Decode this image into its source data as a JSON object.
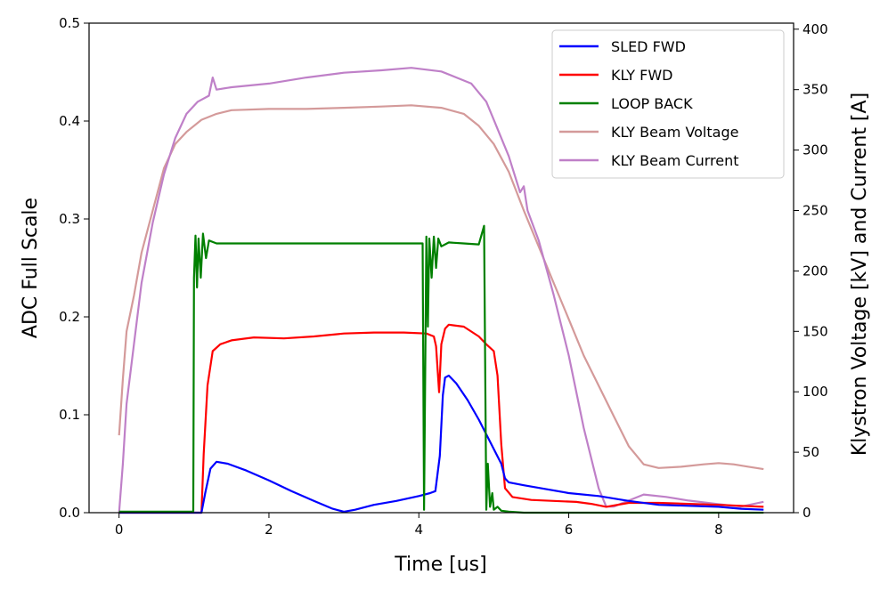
{
  "chart_data": {
    "type": "line",
    "xlabel": "Time [us]",
    "ylabel_left": "ADC Full Scale",
    "ylabel_right": "Klystron Voltage [kV] and Current [A]",
    "xlim": [
      -0.4,
      9.0
    ],
    "ylim_left": [
      0,
      0.5
    ],
    "ylim_right": [
      0,
      405
    ],
    "x_ticks": [
      0,
      2,
      4,
      6,
      8
    ],
    "x_tick_labels": [
      "0",
      "2",
      "4",
      "6",
      "8"
    ],
    "y_left_ticks": [
      0,
      0.1,
      0.2,
      0.3,
      0.4,
      0.5
    ],
    "y_left_tick_labels": [
      "0.0",
      "0.1",
      "0.2",
      "0.3",
      "0.4",
      "0.5"
    ],
    "y_right_ticks": [
      0,
      50,
      100,
      150,
      200,
      250,
      300,
      350,
      400
    ],
    "y_right_tick_labels": [
      "0",
      "50",
      "100",
      "150",
      "200",
      "250",
      "300",
      "350",
      "400"
    ],
    "legend_position": "top-right",
    "series": [
      {
        "name": "SLED FWD",
        "axis": "left",
        "color": "#0000ff",
        "x": [
          0,
          1.1,
          1.15,
          1.22,
          1.3,
          1.45,
          1.7,
          2.0,
          2.3,
          2.6,
          2.85,
          3.0,
          3.15,
          3.4,
          3.7,
          4.0,
          4.15,
          4.22,
          4.28,
          4.32,
          4.35,
          4.4,
          4.5,
          4.65,
          4.8,
          4.9,
          5.0,
          5.1,
          5.15,
          5.2,
          5.4,
          5.7,
          6.0,
          6.4,
          6.8,
          7.2,
          7.6,
          8.0,
          8.3,
          8.6
        ],
        "y": [
          0,
          0,
          0.02,
          0.045,
          0.052,
          0.05,
          0.043,
          0.033,
          0.022,
          0.012,
          0.004,
          0.001,
          0.003,
          0.008,
          0.012,
          0.017,
          0.02,
          0.022,
          0.058,
          0.12,
          0.138,
          0.14,
          0.132,
          0.115,
          0.095,
          0.08,
          0.065,
          0.05,
          0.035,
          0.031,
          0.028,
          0.024,
          0.02,
          0.017,
          0.012,
          0.008,
          0.007,
          0.006,
          0.004,
          0.003
        ]
      },
      {
        "name": "KLY FWD",
        "axis": "left",
        "color": "#ff0000",
        "x": [
          0,
          1.1,
          1.13,
          1.18,
          1.25,
          1.35,
          1.5,
          1.8,
          2.2,
          2.6,
          3.0,
          3.4,
          3.8,
          4.1,
          4.2,
          4.23,
          4.27,
          4.3,
          4.35,
          4.4,
          4.6,
          4.8,
          4.9,
          5.0,
          5.05,
          5.1,
          5.15,
          5.25,
          5.5,
          5.8,
          6.1,
          6.3,
          6.5,
          6.8,
          7.2,
          7.6,
          8.0,
          8.3,
          8.6
        ],
        "y": [
          0,
          0,
          0.06,
          0.13,
          0.165,
          0.172,
          0.176,
          0.179,
          0.178,
          0.18,
          0.183,
          0.184,
          0.184,
          0.183,
          0.18,
          0.17,
          0.123,
          0.172,
          0.188,
          0.192,
          0.19,
          0.18,
          0.172,
          0.165,
          0.14,
          0.07,
          0.025,
          0.016,
          0.013,
          0.012,
          0.011,
          0.009,
          0.006,
          0.01,
          0.01,
          0.009,
          0.008,
          0.007,
          0.006
        ]
      },
      {
        "name": "LOOP BACK",
        "axis": "left",
        "color": "#008000",
        "x": [
          0,
          0.95,
          0.99,
          1.0,
          1.02,
          1.04,
          1.06,
          1.09,
          1.12,
          1.16,
          1.2,
          1.3,
          1.6,
          2.0,
          2.4,
          2.8,
          3.2,
          3.6,
          4.0,
          4.05,
          4.07,
          4.1,
          4.12,
          4.14,
          4.17,
          4.2,
          4.23,
          4.26,
          4.3,
          4.4,
          4.6,
          4.8,
          4.87,
          4.9,
          4.92,
          4.95,
          4.98,
          5.0,
          5.05,
          5.1,
          5.2,
          5.4,
          5.8,
          6.2,
          6.6,
          7.0,
          7.5,
          8.0,
          8.6
        ],
        "y": [
          0.001,
          0.001,
          0.001,
          0.24,
          0.283,
          0.23,
          0.28,
          0.24,
          0.285,
          0.26,
          0.278,
          0.275,
          0.275,
          0.275,
          0.275,
          0.275,
          0.275,
          0.275,
          0.275,
          0.275,
          0.003,
          0.282,
          0.19,
          0.28,
          0.24,
          0.282,
          0.25,
          0.28,
          0.272,
          0.276,
          0.275,
          0.274,
          0.293,
          0.003,
          0.05,
          0.006,
          0.02,
          0.003,
          0.006,
          0.002,
          0.001,
          0,
          0,
          0,
          0,
          0,
          0,
          0,
          0
        ]
      },
      {
        "name": "KLY Beam Voltage",
        "axis": "right",
        "color": "#d49a9a",
        "x": [
          0,
          0.05,
          0.1,
          0.2,
          0.3,
          0.45,
          0.6,
          0.75,
          0.9,
          1.1,
          1.3,
          1.5,
          2.0,
          2.5,
          3.0,
          3.5,
          3.9,
          4.3,
          4.6,
          4.8,
          5.0,
          5.2,
          5.4,
          5.6,
          5.8,
          6.0,
          6.2,
          6.4,
          6.6,
          6.8,
          7.0,
          7.2,
          7.5,
          7.8,
          8.0,
          8.2,
          8.4,
          8.6
        ],
        "y": [
          64,
          110,
          150,
          180,
          215,
          250,
          285,
          305,
          315,
          325,
          330,
          333,
          334,
          334,
          335,
          336,
          337,
          335,
          330,
          320,
          305,
          282,
          250,
          220,
          190,
          160,
          130,
          105,
          80,
          55,
          40,
          37,
          38,
          40,
          41,
          40,
          38,
          36
        ]
      },
      {
        "name": "KLY Beam Current",
        "axis": "right",
        "color": "#bf80c8",
        "x": [
          0,
          0.05,
          0.1,
          0.2,
          0.3,
          0.45,
          0.6,
          0.75,
          0.9,
          1.05,
          1.2,
          1.25,
          1.3,
          1.5,
          2.0,
          2.5,
          3.0,
          3.5,
          3.9,
          4.3,
          4.7,
          4.9,
          5.0,
          5.2,
          5.35,
          5.4,
          5.45,
          5.6,
          5.8,
          6.0,
          6.2,
          6.4,
          6.5,
          6.6,
          6.8,
          7.0,
          7.3,
          7.6,
          8.0,
          8.3,
          8.6
        ],
        "y": [
          0,
          40,
          90,
          140,
          190,
          240,
          280,
          310,
          330,
          340,
          345,
          360,
          350,
          352,
          355,
          360,
          364,
          366,
          368,
          365,
          355,
          340,
          325,
          295,
          265,
          270,
          250,
          225,
          180,
          130,
          70,
          20,
          5,
          5,
          10,
          15,
          13,
          10,
          7,
          5,
          9
        ]
      }
    ]
  }
}
